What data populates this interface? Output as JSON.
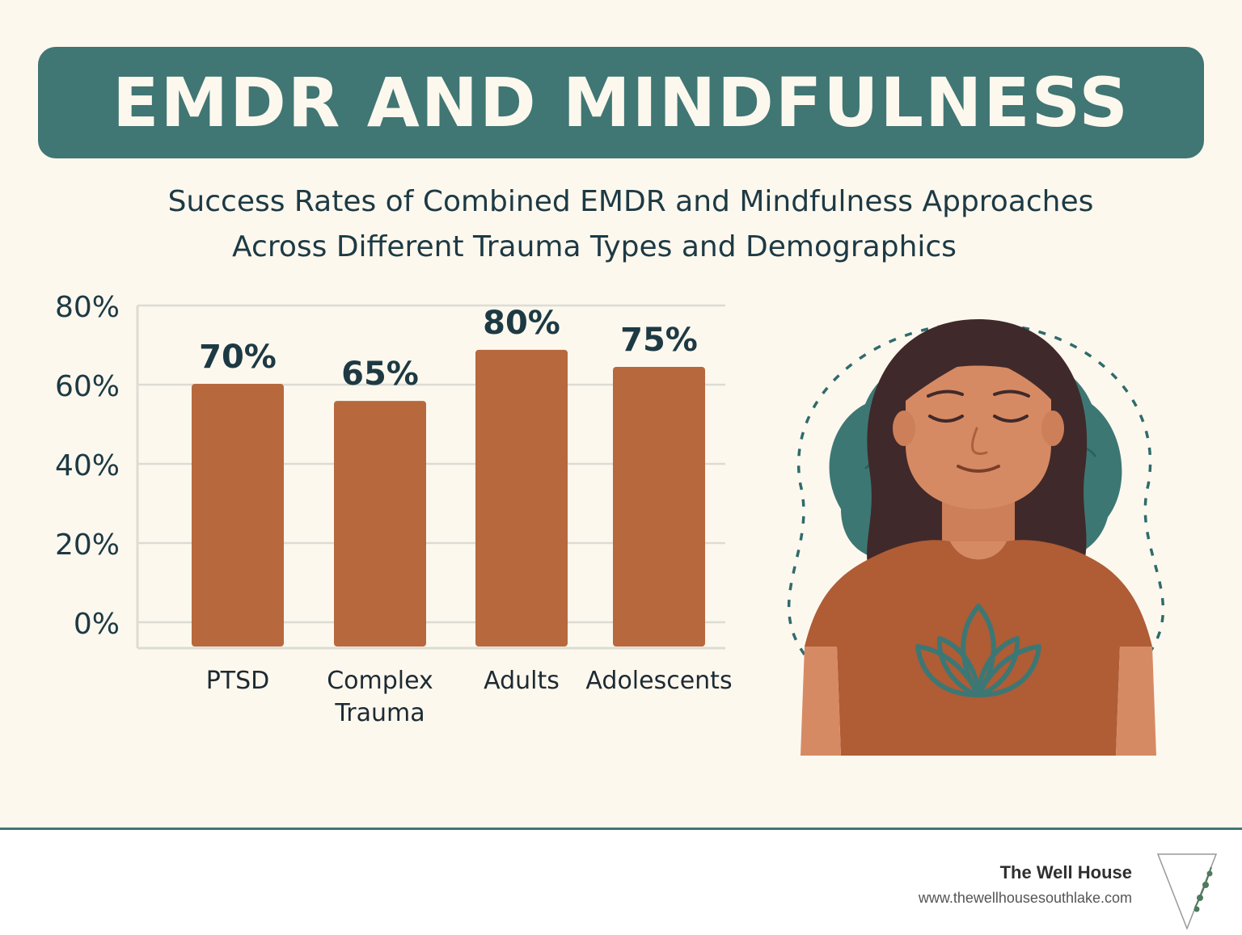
{
  "header": {
    "title": "EMDR AND MINDFULNESS"
  },
  "subtitle": {
    "line1": "Success Rates of Combined EMDR and Mindfulness Approaches",
    "line2": "Across Different Trauma Types and Demographics"
  },
  "chart_data": {
    "type": "bar",
    "title": "",
    "xlabel": "",
    "ylabel": "",
    "categories": [
      "PTSD",
      "Complex Trauma",
      "Adults",
      "Adolescents"
    ],
    "values": [
      70,
      65,
      80,
      75
    ],
    "data_labels": [
      "70%",
      "65%",
      "80%",
      "75%"
    ],
    "y_ticks": [
      "0%",
      "20%",
      "40%",
      "60%",
      "80%"
    ],
    "ylim": [
      0,
      80
    ],
    "grid": true,
    "bar_color": "#b7693d"
  },
  "footer": {
    "brand": "The Well House",
    "url": "www.thewellhousesouthlake.com"
  },
  "colors": {
    "banner": "#407674",
    "background": "#fdf8ee",
    "bar": "#b7693d",
    "text": "#1d3a44"
  }
}
